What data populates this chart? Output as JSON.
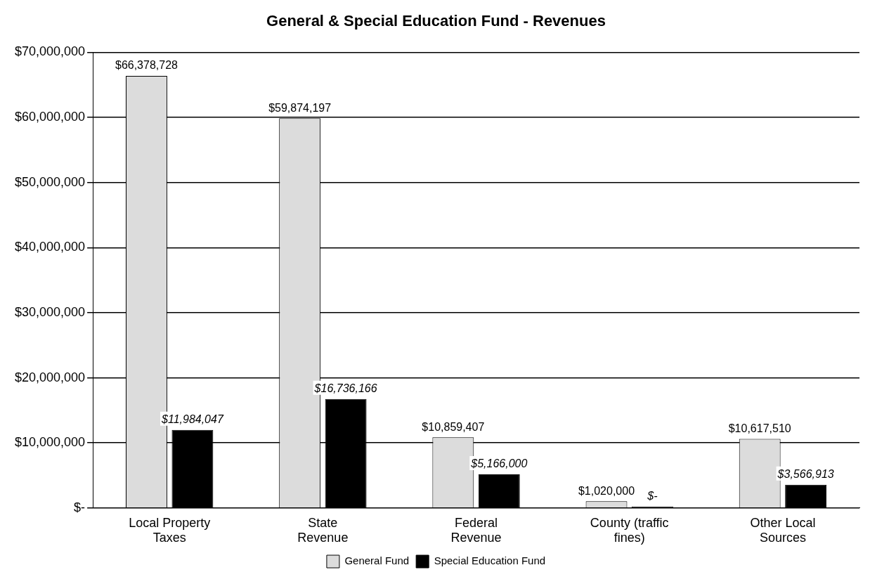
{
  "chart_data": {
    "type": "bar",
    "title": "General & Special Education Fund - Revenues",
    "categories": [
      "Local Property Taxes",
      "State Revenue",
      "Federal Revenue",
      "County (traffic fines)",
      "Other Local Sources"
    ],
    "series": [
      {
        "name": "General Fund",
        "color": "#dcdcdc",
        "values": [
          66378728,
          59874197,
          10859407,
          1020000,
          10617510
        ],
        "value_labels": [
          "$66,378,728",
          "$59,874,197",
          "$10,859,407",
          "$1,020,000",
          "$10,617,510"
        ]
      },
      {
        "name": "Special Education Fund",
        "color": "#000000",
        "values": [
          11984047,
          16736166,
          5166000,
          0,
          3566913
        ],
        "value_labels": [
          "$11,984,047",
          "$16,736,166",
          "$5,166,000",
          "$-",
          "$3,566,913"
        ]
      }
    ],
    "ylim": [
      0,
      70000000
    ],
    "yticks": [
      {
        "value": 0,
        "label": "$-"
      },
      {
        "value": 10000000,
        "label": "$10,000,000"
      },
      {
        "value": 20000000,
        "label": "$20,000,000"
      },
      {
        "value": 30000000,
        "label": "$30,000,000"
      },
      {
        "value": 40000000,
        "label": "$40,000,000"
      },
      {
        "value": 50000000,
        "label": "$50,000,000"
      },
      {
        "value": 60000000,
        "label": "$60,000,000"
      },
      {
        "value": 70000000,
        "label": "$70,000,000"
      }
    ],
    "grid": "y",
    "legend": "bottom"
  }
}
